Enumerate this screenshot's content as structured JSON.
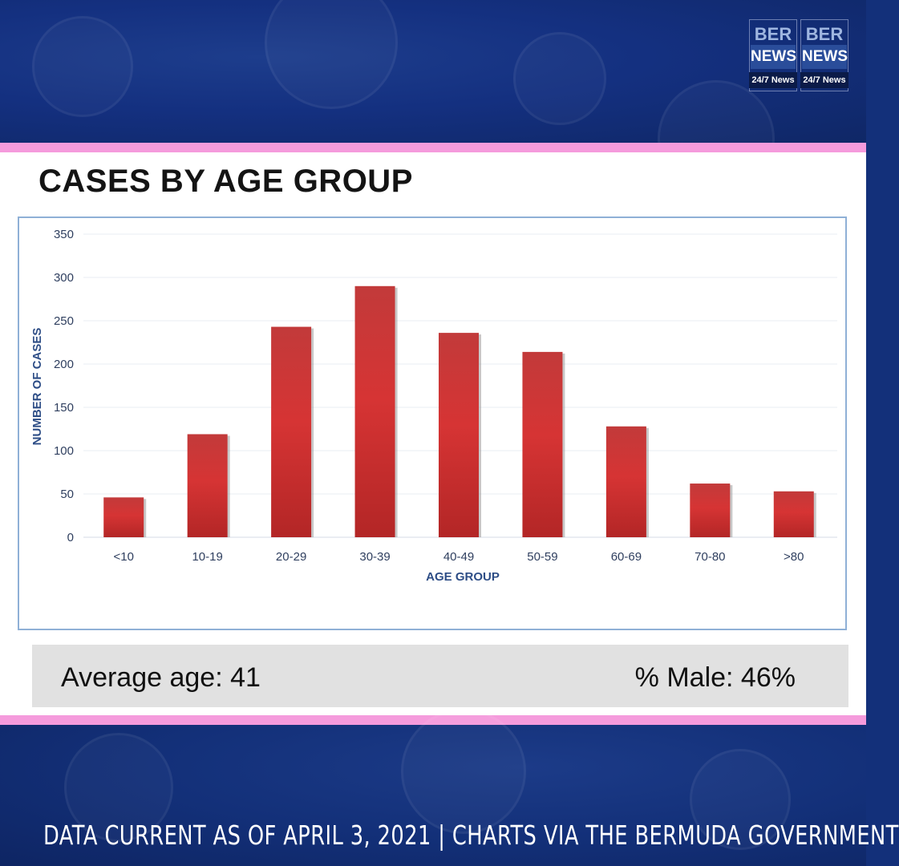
{
  "title": "CASES BY AGE GROUP",
  "logo": {
    "line1": "BER",
    "line2": "NEWS",
    "tagline": "24/7 News"
  },
  "stats": {
    "average_age": "Average age: 41",
    "percent_male": "% Male: 46%"
  },
  "footer": "DATA CURRENT AS OF APRIL 3, 2021 | CHARTS VIA THE BERMUDA GOVERNMENT",
  "colors": {
    "bar": "#d03131",
    "bar_dark": "#a82222",
    "axis_text": "#2d4d86",
    "tick_text": "#2f3f5f",
    "pink": "#f59bdc",
    "navy": "#13307a"
  },
  "chart_data": {
    "type": "bar",
    "title": "",
    "xlabel": "AGE GROUP",
    "ylabel": "NUMBER OF CASES",
    "categories": [
      "<10",
      "10-19",
      "20-29",
      "30-39",
      "40-49",
      "50-59",
      "60-69",
      "70-80",
      ">80"
    ],
    "values": [
      46,
      119,
      243,
      290,
      236,
      214,
      128,
      62,
      53
    ],
    "yticks": [
      0,
      50,
      100,
      150,
      200,
      250,
      300,
      350
    ],
    "ylim": [
      0,
      350
    ],
    "grid": true
  }
}
